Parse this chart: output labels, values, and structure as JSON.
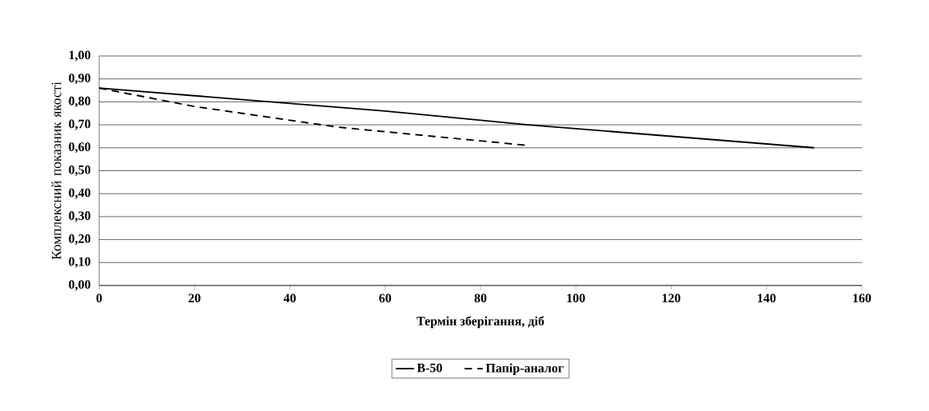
{
  "chart_data": {
    "type": "line",
    "xlabel": "Термін зберігання, діб",
    "ylabel": "Комплексний показник якості",
    "xlim": [
      0,
      160
    ],
    "xticks": [
      0,
      20,
      40,
      60,
      80,
      100,
      120,
      140,
      160
    ],
    "ylim": [
      0,
      1
    ],
    "yticks": [
      {
        "value": 0,
        "label": "0,00"
      },
      {
        "value": 0.1,
        "label": "0,10"
      },
      {
        "value": 0.2,
        "label": "0,20"
      },
      {
        "value": 0.3,
        "label": "0,30"
      },
      {
        "value": 0.4,
        "label": "0,40"
      },
      {
        "value": 0.5,
        "label": "0,50"
      },
      {
        "value": 0.6,
        "label": "0,60"
      },
      {
        "value": 0.7,
        "label": "0,70"
      },
      {
        "value": 0.8,
        "label": "0,80"
      },
      {
        "value": 0.9,
        "label": "0,90"
      },
      {
        "value": 1,
        "label": "1,00"
      }
    ],
    "grid": "y",
    "legend": "bottom",
    "series": [
      {
        "name": "B-50",
        "color": "#000000",
        "line_style": "solid",
        "x": [
          0,
          30,
          60,
          90,
          120,
          150
        ],
        "values": [
          0.86,
          0.81,
          0.76,
          0.7,
          0.65,
          0.6
        ]
      },
      {
        "name": "Папір-аналог",
        "color": "#000000",
        "line_style": "dashed",
        "x": [
          0,
          5,
          10,
          15,
          20,
          30,
          40,
          50,
          60,
          70,
          80,
          90
        ],
        "values": [
          0.86,
          0.84,
          0.82,
          0.8,
          0.78,
          0.75,
          0.72,
          0.69,
          0.67,
          0.65,
          0.63,
          0.61
        ]
      }
    ]
  }
}
